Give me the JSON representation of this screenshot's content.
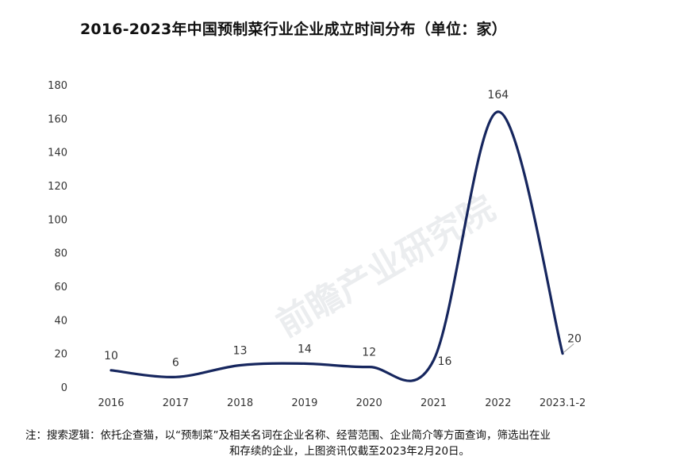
{
  "header": {
    "title": "2016-2023年中国预制菜行业企业成立时间分布（单位：家）"
  },
  "footer": {
    "note_line1": "注：搜索逻辑：依托企查猫，以“预制菜”及相关名词在企业名称、经营范围、企业简介等方面查询，筛选出在业",
    "note_line2": "和存续的企业，上图资讯仅截至2023年2月20日。"
  },
  "watermark": {
    "text": "前瞻产业研究院"
  },
  "chart_data": {
    "type": "line",
    "title": "2016-2023年中国预制菜行业企业成立时间分布（单位：家）",
    "categories": [
      "2016",
      "2017",
      "2018",
      "2019",
      "2020",
      "2021",
      "2022",
      "2023.1-2"
    ],
    "values": [
      10,
      6,
      13,
      14,
      12,
      16,
      164,
      20
    ],
    "data_labels": [
      "10",
      "6",
      "13",
      "14",
      "12",
      "16",
      "164",
      "20"
    ],
    "ylim": [
      0,
      180
    ],
    "yticks": [
      "0",
      "20",
      "40",
      "60",
      "80",
      "100",
      "120",
      "140",
      "160",
      "180"
    ],
    "xlabel": "",
    "ylabel": "",
    "grid": false,
    "line_color": "#16265e",
    "smooth": true
  }
}
